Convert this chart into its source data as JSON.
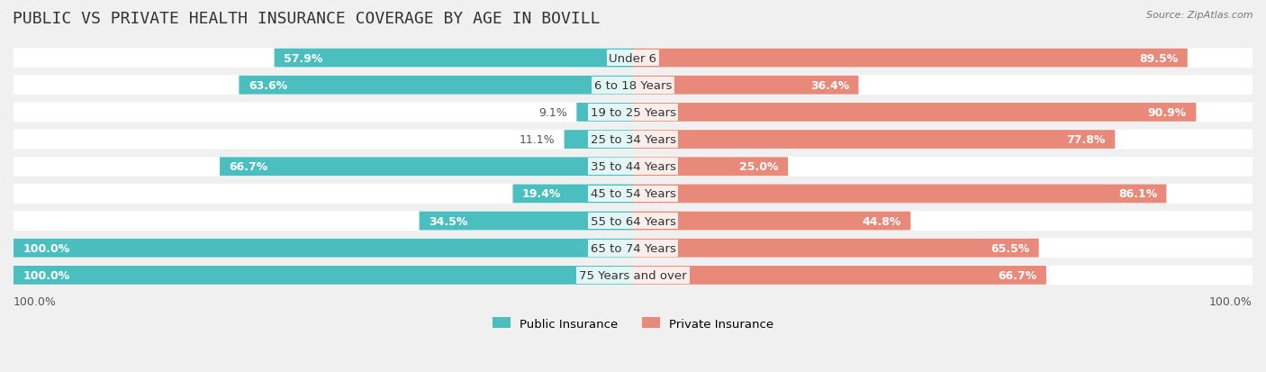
{
  "title": "PUBLIC VS PRIVATE HEALTH INSURANCE COVERAGE BY AGE IN BOVILL",
  "source": "Source: ZipAtlas.com",
  "categories": [
    "Under 6",
    "6 to 18 Years",
    "19 to 25 Years",
    "25 to 34 Years",
    "35 to 44 Years",
    "45 to 54 Years",
    "55 to 64 Years",
    "65 to 74 Years",
    "75 Years and over"
  ],
  "public_values": [
    57.9,
    63.6,
    9.1,
    11.1,
    66.7,
    19.4,
    34.5,
    100.0,
    100.0
  ],
  "private_values": [
    89.5,
    36.4,
    90.9,
    77.8,
    25.0,
    86.1,
    44.8,
    65.5,
    66.7
  ],
  "public_color": "#4bbfbf",
  "private_color": "#e8897a",
  "public_label": "Public Insurance",
  "private_label": "Private Insurance",
  "bg_color": "#f0f0f0",
  "bar_bg_color": "#ffffff",
  "bar_height": 0.68,
  "xlim": [
    0,
    100
  ],
  "title_fontsize": 13,
  "label_fontsize": 9.5,
  "category_fontsize": 9.5,
  "value_fontsize": 9
}
